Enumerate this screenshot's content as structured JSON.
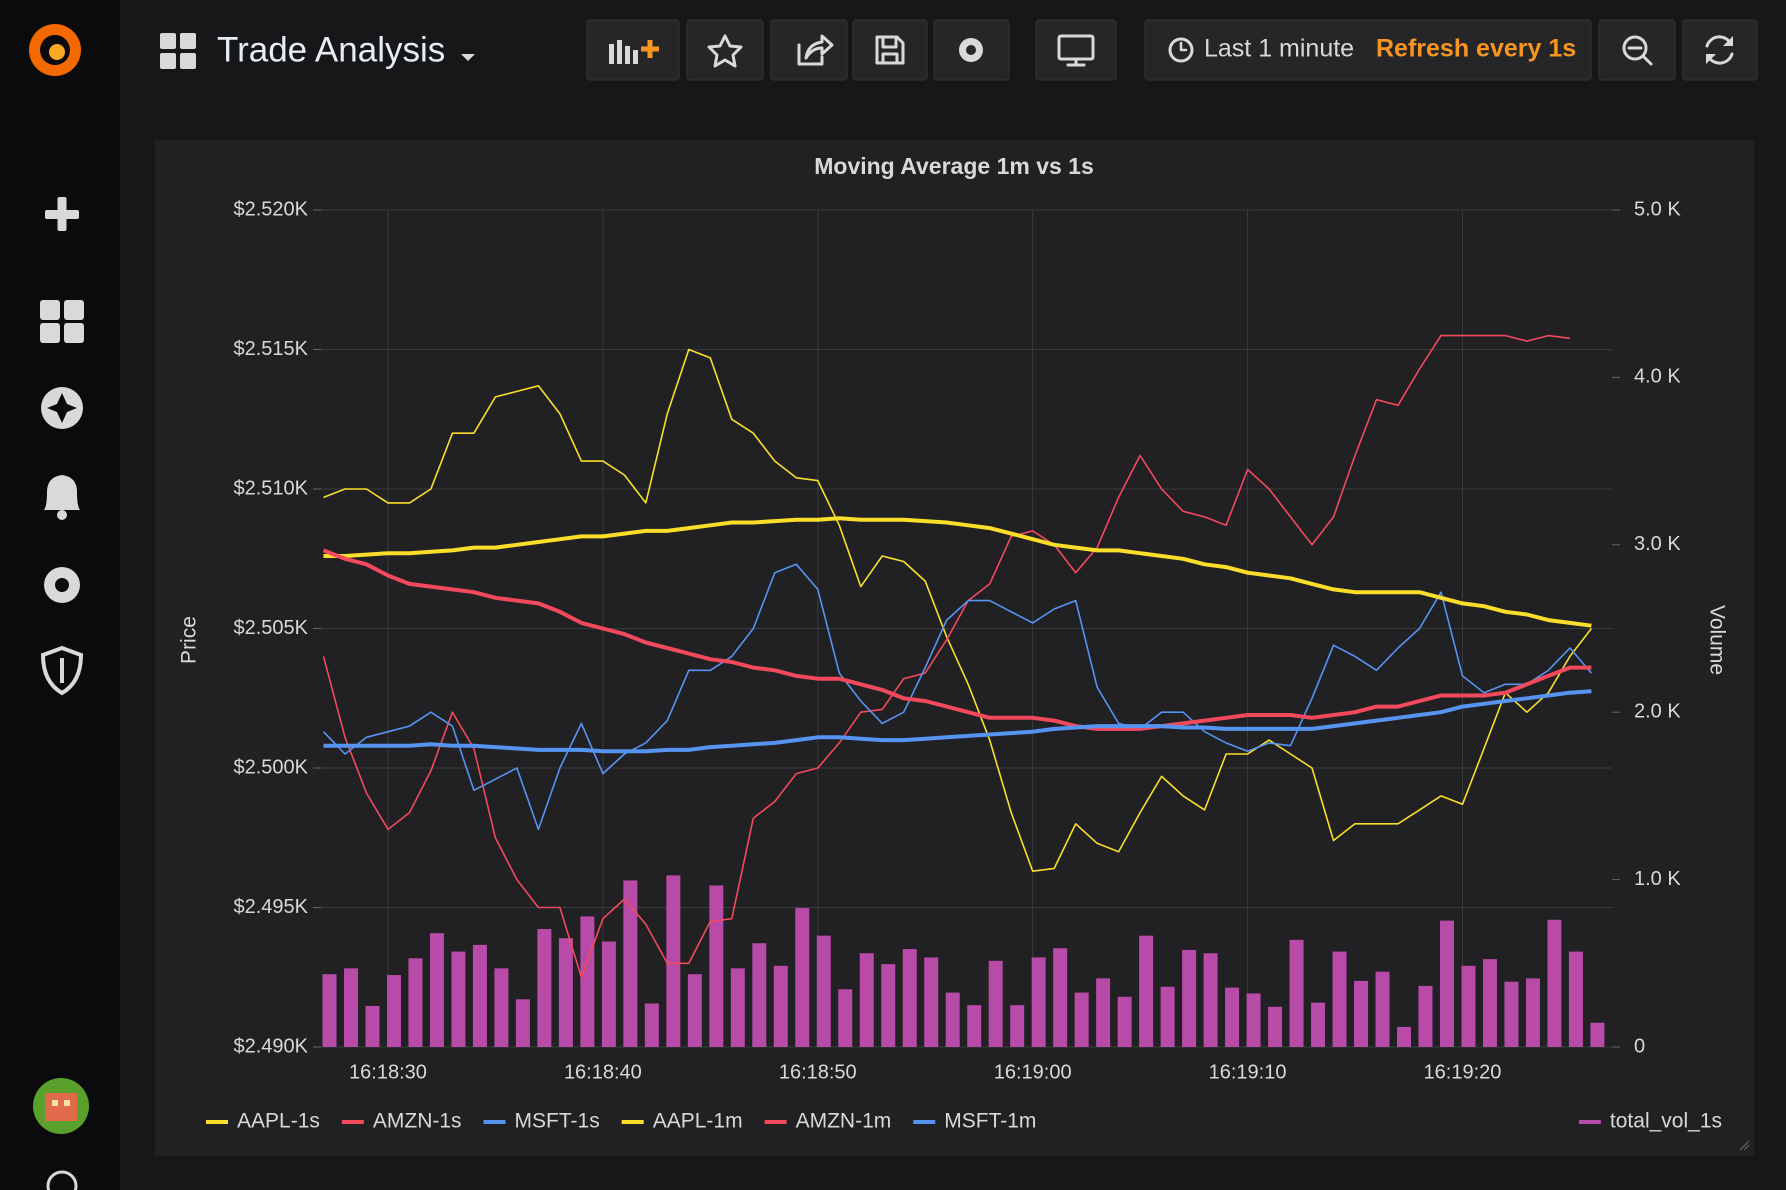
{
  "header": {
    "title": "Trade Analysis",
    "time_range": "Last 1 minute",
    "refresh": "Refresh every 1s"
  },
  "chart_data": {
    "type": "line",
    "title": "Moving Average 1m vs 1s",
    "y_label": "Price",
    "y2_label": "Volume",
    "grid": true,
    "categories": [
      null,
      null,
      null,
      "16:18:30",
      null,
      null,
      null,
      null,
      null,
      null,
      null,
      null,
      null,
      "16:18:40",
      null,
      null,
      null,
      null,
      null,
      null,
      null,
      null,
      null,
      "16:18:50",
      null,
      null,
      null,
      null,
      null,
      null,
      null,
      null,
      null,
      "16:19:00",
      null,
      null,
      null,
      null,
      null,
      null,
      null,
      null,
      null,
      "16:19:10",
      null,
      null,
      null,
      null,
      null,
      null,
      null,
      null,
      null,
      "16:19:20",
      null,
      null,
      null,
      null,
      null,
      null
    ],
    "ylim": [
      2490,
      2520
    ],
    "yticks": [
      {
        "value": 2490,
        "label": "$2.490K"
      },
      {
        "value": 2495,
        "label": "$2.495K"
      },
      {
        "value": 2500,
        "label": "$2.500K"
      },
      {
        "value": 2505,
        "label": "$2.505K"
      },
      {
        "value": 2510,
        "label": "$2.510K"
      },
      {
        "value": 2515,
        "label": "$2.515K"
      },
      {
        "value": 2520,
        "label": "$2.520K"
      }
    ],
    "y2lim": [
      0,
      5000
    ],
    "y2ticks": [
      0,
      {
        "value": 1000,
        "label": "1.0 K"
      },
      {
        "value": 2000,
        "label": "2.0 K"
      },
      {
        "value": 3000,
        "label": "3.0 K"
      },
      {
        "value": 4000,
        "label": "4.0 K"
      },
      {
        "value": 5000,
        "label": "5.0 K"
      }
    ],
    "series": [
      {
        "name": "total_vol_1s",
        "type": "bar",
        "axis": "y2",
        "color": "#b84aa8",
        "values": [
          435,
          470,
          245,
          430,
          530,
          680,
          570,
          610,
          470,
          285,
          705,
          650,
          780,
          630,
          995,
          260,
          1025,
          435,
          965,
          470,
          620,
          485,
          830,
          665,
          345,
          560,
          495,
          585,
          535,
          325,
          250,
          515,
          250,
          535,
          590,
          325,
          410,
          300,
          665,
          360,
          580,
          560,
          355,
          320,
          240,
          640,
          265,
          570,
          395,
          450,
          120,
          365,
          755,
          485,
          525,
          390,
          410,
          760,
          570,
          145
        ]
      },
      {
        "name": "AAPL-1s",
        "color": "#fade2a",
        "line_width": 1.6,
        "values": [
          2509.7,
          2510.0,
          2510.0,
          2509.5,
          2509.5,
          2510.0,
          2512.0,
          2512.0,
          2513.3,
          2513.5,
          2513.7,
          2512.7,
          2511.0,
          2511.0,
          2510.5,
          2509.5,
          2512.7,
          2515.0,
          2514.7,
          2512.5,
          2512.0,
          2511.0,
          2510.4,
          2510.3,
          2508.7,
          2506.5,
          2507.6,
          2507.4,
          2506.7,
          2504.7,
          2503.0,
          2501.0,
          2498.4,
          2496.3,
          2496.4,
          2498.0,
          2497.3,
          2497.0,
          2498.4,
          2499.7,
          2499.0,
          2498.5,
          2500.5,
          2500.5,
          2501.0,
          2500.5,
          2500.0,
          2497.4,
          2498.0,
          2498.0,
          2498.0,
          2498.5,
          2499.0,
          2498.7,
          2500.7,
          2502.7,
          2502.0,
          2502.7,
          2504.0,
          2505.0
        ]
      },
      {
        "name": "AMZN-1s",
        "color": "#f2495c",
        "line_width": 1.6,
        "values": [
          2504.0,
          2501.1,
          2499.1,
          2497.8,
          2498.4,
          2499.9,
          2502.0,
          2500.7,
          2497.5,
          2496.0,
          2495.0,
          2495.0,
          2492.5,
          2494.6,
          2495.3,
          2494.4,
          2493.0,
          2493.0,
          2494.5,
          2494.6,
          2498.2,
          2498.8,
          2499.8,
          2500.0,
          2500.9,
          2502.0,
          2502.1,
          2503.2,
          2503.4,
          2504.6,
          2506.0,
          2506.6,
          2508.3,
          2508.5,
          2508.0,
          2507.0,
          2507.9,
          2509.7,
          2511.2,
          2510.0,
          2509.2,
          2509.0,
          2508.7,
          2510.7,
          2510.0,
          2509.0,
          2508.0,
          2509.0,
          2511.2,
          2513.2,
          2513.0,
          2514.3,
          2515.5,
          2515.5,
          2515.5,
          2515.5,
          2515.3,
          2515.5,
          2515.4,
          null
        ]
      },
      {
        "name": "MSFT-1s",
        "color": "#5794f2",
        "line_width": 1.6,
        "values": [
          2501.3,
          2500.5,
          2501.1,
          2501.3,
          2501.5,
          2502.0,
          2501.5,
          2499.2,
          2499.6,
          2500.0,
          2497.8,
          2500.0,
          2501.6,
          2499.8,
          2500.5,
          2500.9,
          2501.7,
          2503.5,
          2503.5,
          2504.0,
          2505.0,
          2507.0,
          2507.3,
          2506.4,
          2503.4,
          2502.4,
          2501.6,
          2502.0,
          2503.6,
          2505.3,
          2506.0,
          2506.0,
          2505.6,
          2505.2,
          2505.7,
          2506.0,
          2502.9,
          2501.6,
          2501.4,
          2502.0,
          2502.0,
          2501.3,
          2500.9,
          2500.6,
          2500.9,
          2500.8,
          2502.5,
          2504.4,
          2504.0,
          2503.5,
          2504.3,
          2505.0,
          2506.3,
          2503.3,
          2502.7,
          2503.0,
          2503.0,
          2503.5,
          2504.3,
          2503.4
        ]
      },
      {
        "name": "AAPL-1m",
        "color": "#fade2a",
        "line_width": 4,
        "values": [
          2507.6,
          2507.6,
          2507.65,
          2507.7,
          2507.7,
          2507.75,
          2507.8,
          2507.9,
          2507.9,
          2508.0,
          2508.1,
          2508.2,
          2508.3,
          2508.3,
          2508.4,
          2508.5,
          2508.5,
          2508.6,
          2508.7,
          2508.8,
          2508.8,
          2508.85,
          2508.9,
          2508.9,
          2508.95,
          2508.9,
          2508.9,
          2508.9,
          2508.85,
          2508.8,
          2508.7,
          2508.6,
          2508.4,
          2508.2,
          2508.0,
          2507.9,
          2507.8,
          2507.8,
          2507.7,
          2507.6,
          2507.5,
          2507.3,
          2507.2,
          2507.0,
          2506.9,
          2506.8,
          2506.6,
          2506.4,
          2506.3,
          2506.3,
          2506.3,
          2506.3,
          2506.1,
          2505.9,
          2505.8,
          2505.6,
          2505.5,
          2505.3,
          2505.2,
          2505.1
        ]
      },
      {
        "name": "AMZN-1m",
        "color": "#f2495c",
        "line_width": 4,
        "values": [
          2507.8,
          2507.5,
          2507.3,
          2506.9,
          2506.6,
          2506.5,
          2506.4,
          2506.3,
          2506.1,
          2506.0,
          2505.9,
          2505.6,
          2505.2,
          2505.0,
          2504.8,
          2504.5,
          2504.3,
          2504.1,
          2503.9,
          2503.8,
          2503.6,
          2503.5,
          2503.3,
          2503.2,
          2503.2,
          2503.0,
          2502.8,
          2502.5,
          2502.4,
          2502.2,
          2502.0,
          2501.8,
          2501.8,
          2501.8,
          2501.7,
          2501.5,
          2501.4,
          2501.4,
          2501.4,
          2501.5,
          2501.6,
          2501.7,
          2501.8,
          2501.9,
          2501.9,
          2501.9,
          2501.8,
          2501.9,
          2502.0,
          2502.2,
          2502.2,
          2502.4,
          2502.6,
          2502.6,
          2502.6,
          2502.7,
          2503.0,
          2503.3,
          2503.6,
          2503.6
        ]
      },
      {
        "name": "MSFT-1m",
        "color": "#5794f2",
        "line_width": 4,
        "values": [
          2500.8,
          2500.8,
          2500.8,
          2500.8,
          2500.8,
          2500.85,
          2500.8,
          2500.8,
          2500.75,
          2500.7,
          2500.65,
          2500.65,
          2500.65,
          2500.6,
          2500.6,
          2500.6,
          2500.65,
          2500.65,
          2500.75,
          2500.8,
          2500.85,
          2500.9,
          2501.0,
          2501.1,
          2501.1,
          2501.05,
          2501.0,
          2501.0,
          2501.05,
          2501.1,
          2501.15,
          2501.2,
          2501.25,
          2501.3,
          2501.4,
          2501.45,
          2501.5,
          2501.5,
          2501.5,
          2501.5,
          2501.45,
          2501.45,
          2501.4,
          2501.4,
          2501.4,
          2501.4,
          2501.4,
          2501.5,
          2501.6,
          2501.7,
          2501.8,
          2501.9,
          2502.0,
          2502.2,
          2502.3,
          2502.4,
          2502.5,
          2502.6,
          2502.7,
          2502.75
        ]
      }
    ]
  }
}
